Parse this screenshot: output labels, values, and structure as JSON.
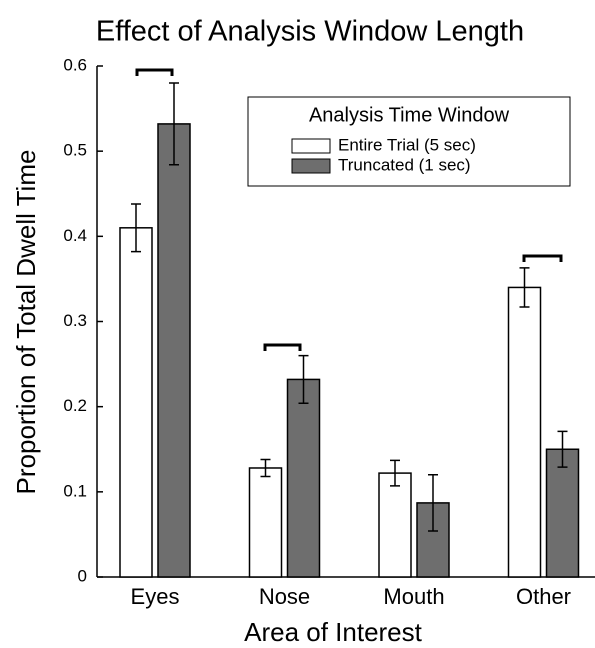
{
  "chart_data": {
    "type": "bar",
    "title": "Effect of Analysis Window Length",
    "x_label": "Area of Interest",
    "y_label": "Proportion of Total Dwell Time",
    "categories": [
      "Eyes",
      "Nose",
      "Mouth",
      "Other"
    ],
    "series": [
      {
        "name": "Entire Trial (5 sec)",
        "color": "#ffffff",
        "values": [
          0.41,
          0.128,
          0.122,
          0.34
        ],
        "errors": [
          0.028,
          0.01,
          0.015,
          0.023
        ]
      },
      {
        "name": "Truncated (1 sec)",
        "color": "#6e6e6e",
        "values": [
          0.532,
          0.232,
          0.087,
          0.15
        ],
        "errors": [
          0.048,
          0.028,
          0.033,
          0.021
        ]
      }
    ],
    "legend_title": "Analysis Time Window",
    "legend_position": "upper right",
    "ylim": [
      0,
      0.6
    ],
    "yticks": [
      0,
      0.1,
      0.2,
      0.3,
      0.4,
      0.5,
      0.6
    ]
  }
}
